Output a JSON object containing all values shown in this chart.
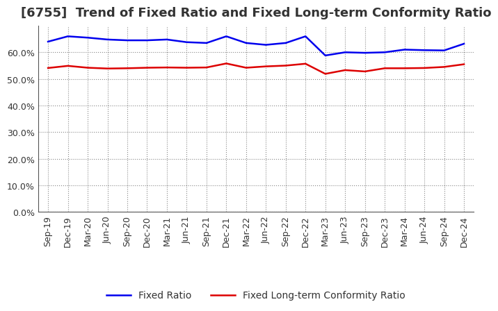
{
  "title": "[6755]  Trend of Fixed Ratio and Fixed Long-term Conformity Ratio",
  "x_labels": [
    "Sep-19",
    "Dec-19",
    "Mar-20",
    "Jun-20",
    "Sep-20",
    "Dec-20",
    "Mar-21",
    "Jun-21",
    "Sep-21",
    "Dec-21",
    "Mar-22",
    "Jun-22",
    "Sep-22",
    "Dec-22",
    "Mar-23",
    "Jun-23",
    "Sep-23",
    "Dec-23",
    "Mar-24",
    "Jun-24",
    "Sep-24",
    "Dec-24"
  ],
  "fixed_ratio": [
    0.64,
    0.66,
    0.655,
    0.648,
    0.645,
    0.645,
    0.648,
    0.638,
    0.635,
    0.66,
    0.635,
    0.628,
    0.635,
    0.66,
    0.588,
    0.6,
    0.598,
    0.6,
    0.61,
    0.608,
    0.607,
    0.632
  ],
  "fixed_lt_ratio": [
    0.541,
    0.549,
    0.542,
    0.539,
    0.54,
    0.542,
    0.543,
    0.542,
    0.543,
    0.558,
    0.542,
    0.547,
    0.55,
    0.557,
    0.519,
    0.533,
    0.528,
    0.54,
    0.54,
    0.541,
    0.545,
    0.555
  ],
  "fixed_ratio_color": "#0000ee",
  "fixed_lt_ratio_color": "#dd0000",
  "background_color": "#ffffff",
  "plot_bg_color": "#ffffff",
  "grid_color": "#888888",
  "ylim": [
    0.0,
    0.7
  ],
  "yticks": [
    0.0,
    0.1,
    0.2,
    0.3,
    0.4,
    0.5,
    0.6
  ],
  "legend_fixed_ratio": "Fixed Ratio",
  "legend_fixed_lt_ratio": "Fixed Long-term Conformity Ratio",
  "title_fontsize": 13,
  "axis_fontsize": 9,
  "legend_fontsize": 10,
  "title_color": "#333333",
  "tick_color": "#333333"
}
